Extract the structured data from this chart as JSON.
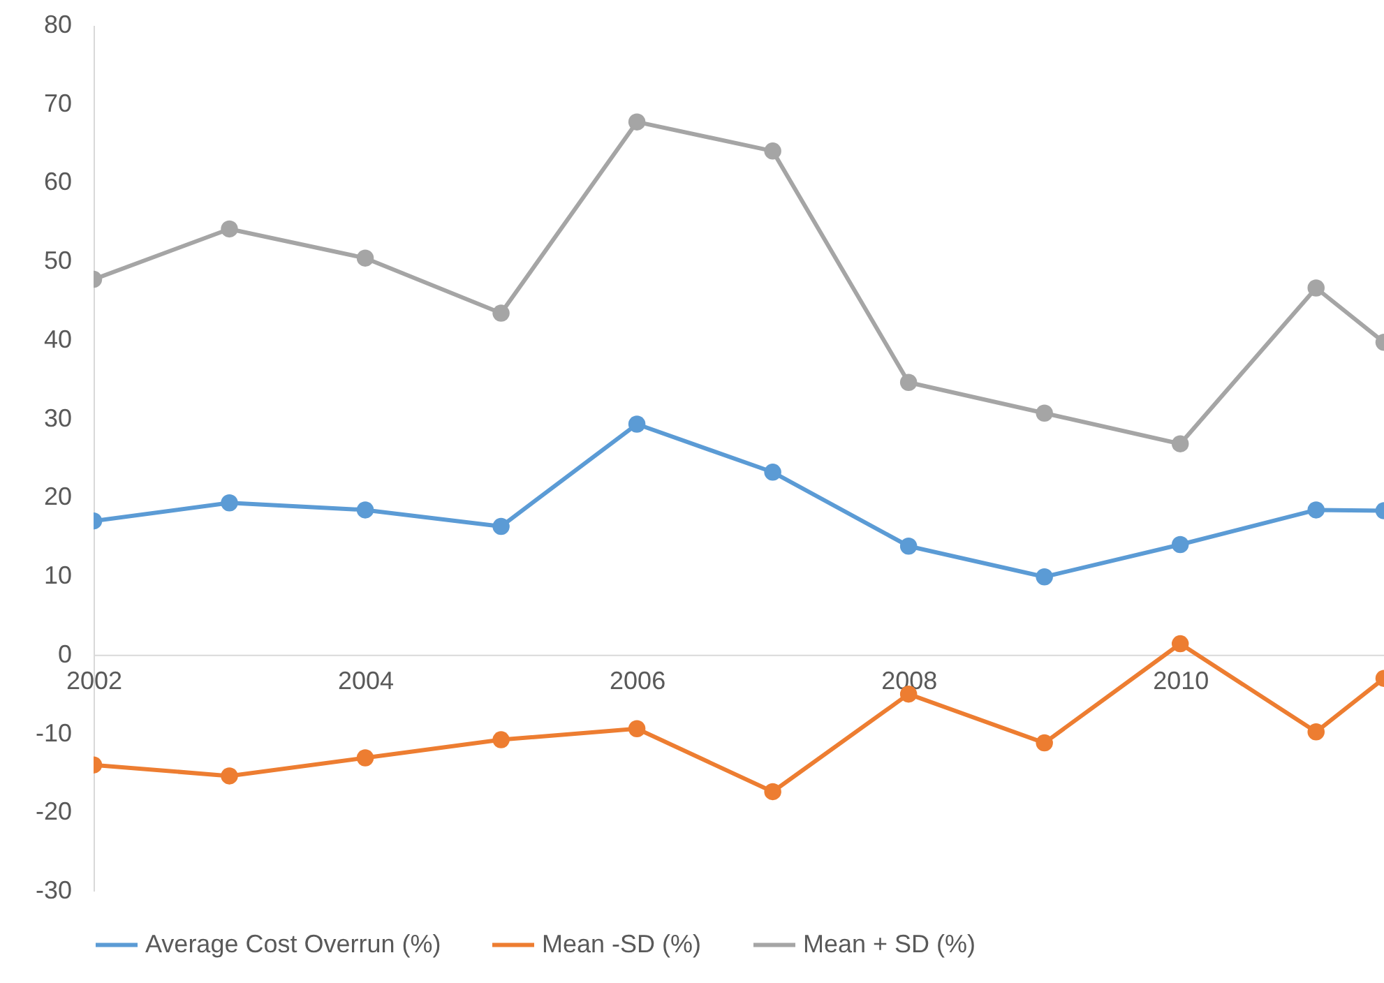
{
  "chart_data": {
    "type": "line",
    "x": [
      2002,
      2003,
      2004,
      2005,
      2006,
      2007,
      2008,
      2009,
      2010,
      2011,
      2011.5
    ],
    "series": [
      {
        "name": "Average Cost Overrun (%)",
        "color": "#5b9bd5",
        "values": [
          17.0,
          19.3,
          18.4,
          16.3,
          29.3,
          23.2,
          13.8,
          9.9,
          14.0,
          18.4,
          18.3
        ]
      },
      {
        "name": "Mean -SD (%)",
        "color": "#ed7d31",
        "values": [
          -14.0,
          -15.4,
          -13.1,
          -10.8,
          -9.4,
          -17.4,
          -5.0,
          -11.2,
          1.4,
          -9.8,
          -3.0
        ]
      },
      {
        "name": "Mean + SD (%)",
        "color": "#a5a5a5",
        "values": [
          47.7,
          54.1,
          50.4,
          43.4,
          67.7,
          64.0,
          34.6,
          30.7,
          26.8,
          46.6,
          39.7
        ]
      }
    ],
    "xlim": [
      2002,
      2011.5
    ],
    "xticks": [
      2002,
      2004,
      2006,
      2008,
      2010
    ],
    "ylim": [
      -30,
      80
    ],
    "yticks": [
      -30,
      -20,
      -10,
      0,
      10,
      20,
      30,
      40,
      50,
      60,
      70,
      80
    ],
    "grid": false,
    "legend": "bottom",
    "marker": "circle",
    "line_style": "solid"
  }
}
